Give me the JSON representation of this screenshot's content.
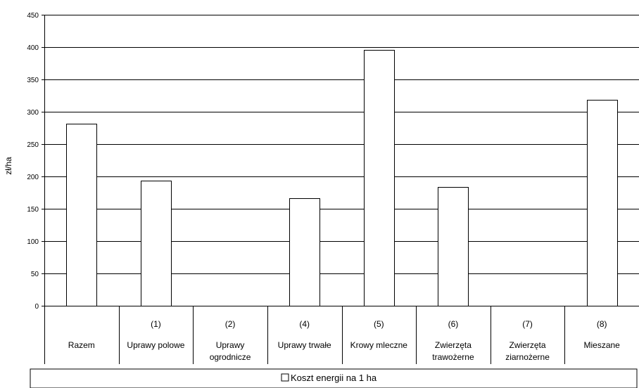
{
  "chart_data": {
    "type": "bar",
    "categories": [
      {
        "code": "",
        "lines": [
          "Razem"
        ]
      },
      {
        "code": "(1)",
        "lines": [
          "Uprawy polowe"
        ]
      },
      {
        "code": "(2)",
        "lines": [
          "Uprawy",
          "ogrodnicze"
        ]
      },
      {
        "code": "(4)",
        "lines": [
          "Uprawy trwałe"
        ]
      },
      {
        "code": "(5)",
        "lines": [
          "Krowy mleczne"
        ]
      },
      {
        "code": "(6)",
        "lines": [
          "Zwierzęta",
          "trawożerne"
        ]
      },
      {
        "code": "(7)",
        "lines": [
          "Zwierzęta",
          "ziarnożerne"
        ]
      },
      {
        "code": "(8)",
        "lines": [
          "Mieszane"
        ]
      }
    ],
    "series": [
      {
        "name": "Koszt energii na 1 ha",
        "values": [
          282,
          193,
          null,
          166,
          396,
          184,
          null,
          319
        ]
      }
    ],
    "ylabel": "zł/ha",
    "xlabel": "",
    "title": "",
    "ylim": [
      0,
      450
    ],
    "yticks": [
      0,
      50,
      100,
      150,
      200,
      250,
      300,
      350,
      400,
      450
    ],
    "grid": true,
    "legend_position": "bottom",
    "colors": {
      "bar_fill": "#ffffff",
      "bar_stroke": "#000000",
      "grid": "#000000"
    }
  }
}
